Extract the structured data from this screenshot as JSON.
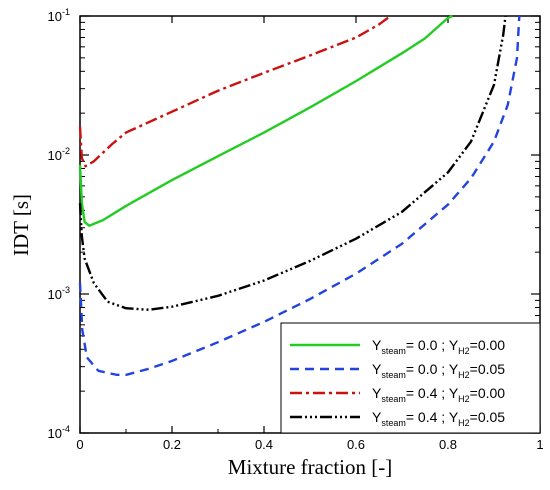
{
  "chart_data": {
    "type": "line",
    "xlabel": "Mixture fraction [-]",
    "ylabel": "IDT [s]",
    "xlim": [
      0,
      1
    ],
    "ylim": [
      0.0001,
      0.1
    ],
    "yscale": "log",
    "x_ticks": [
      "0",
      "0.2",
      "0.4",
      "0.6",
      "0.8",
      "1"
    ],
    "x_tick_values": [
      0,
      0.2,
      0.4,
      0.6,
      0.8,
      1
    ],
    "y_ticks": [
      {
        "value": 0.1,
        "base": "10",
        "exp": "-1"
      },
      {
        "value": 0.01,
        "base": "10",
        "exp": "-2"
      },
      {
        "value": 0.001,
        "base": "10",
        "exp": "-3"
      },
      {
        "value": 0.0001,
        "base": "10",
        "exp": "-4"
      }
    ],
    "grid": false,
    "legend_position": "bottom-right",
    "series": [
      {
        "legend": {
          "y_main": "Y",
          "y_sub": "steam",
          "val1": "=  0.0 ; ",
          "h_main": "Y",
          "h_sub": "H2",
          "val2": "=0.00"
        },
        "color": "#22cc22",
        "dash": "solid",
        "points": [
          [
            0.0,
            0.0085
          ],
          [
            0.004,
            0.0045
          ],
          [
            0.01,
            0.0033
          ],
          [
            0.02,
            0.0031
          ],
          [
            0.05,
            0.0034
          ],
          [
            0.1,
            0.0043
          ],
          [
            0.2,
            0.0066
          ],
          [
            0.3,
            0.0098
          ],
          [
            0.4,
            0.0145
          ],
          [
            0.5,
            0.022
          ],
          [
            0.6,
            0.034
          ],
          [
            0.7,
            0.054
          ],
          [
            0.75,
            0.069
          ],
          [
            0.8,
            0.097
          ],
          [
            0.81,
            0.1
          ]
        ]
      },
      {
        "legend": {
          "y_main": "Y",
          "y_sub": "steam",
          "val1": "=  0.0 ; ",
          "h_main": "Y",
          "h_sub": "H2",
          "val2": "=0.05"
        },
        "color": "#2244dd",
        "dash": "9,6",
        "points": [
          [
            0.0,
            0.0012
          ],
          [
            0.005,
            0.00055
          ],
          [
            0.015,
            0.00035
          ],
          [
            0.04,
            0.00028
          ],
          [
            0.08,
            0.000262
          ],
          [
            0.1,
            0.000262
          ],
          [
            0.15,
            0.00029
          ],
          [
            0.2,
            0.00033
          ],
          [
            0.3,
            0.00045
          ],
          [
            0.4,
            0.00063
          ],
          [
            0.5,
            0.00092
          ],
          [
            0.6,
            0.0014
          ],
          [
            0.7,
            0.0023
          ],
          [
            0.8,
            0.0044
          ],
          [
            0.85,
            0.0068
          ],
          [
            0.9,
            0.0125
          ],
          [
            0.93,
            0.023
          ],
          [
            0.95,
            0.05
          ],
          [
            0.955,
            0.1
          ]
        ]
      },
      {
        "legend": {
          "y_main": "Y",
          "y_sub": "steam",
          "val1": "=  0.4 ; ",
          "h_main": "Y",
          "h_sub": "H2",
          "val2": "=0.00"
        },
        "color": "#cc1111",
        "dash": "12,4,3,4",
        "points": [
          [
            0.0,
            0.016
          ],
          [
            0.004,
            0.0095
          ],
          [
            0.012,
            0.0083
          ],
          [
            0.03,
            0.009
          ],
          [
            0.07,
            0.012
          ],
          [
            0.1,
            0.0145
          ],
          [
            0.2,
            0.0205
          ],
          [
            0.3,
            0.029
          ],
          [
            0.4,
            0.039
          ],
          [
            0.5,
            0.052
          ],
          [
            0.6,
            0.07
          ],
          [
            0.65,
            0.087
          ],
          [
            0.675,
            0.1
          ]
        ]
      },
      {
        "legend": {
          "y_main": "Y",
          "y_sub": "steam",
          "val1": "=  0.4 ; ",
          "h_main": "Y",
          "h_sub": "H2",
          "val2": "=0.05"
        },
        "color": "#000000",
        "dash": "12,3,2,3,2,3,2,3",
        "points": [
          [
            0.0,
            0.0045
          ],
          [
            0.004,
            0.0026
          ],
          [
            0.01,
            0.0018
          ],
          [
            0.03,
            0.0012
          ],
          [
            0.06,
            0.00088
          ],
          [
            0.1,
            0.00079
          ],
          [
            0.15,
            0.00077
          ],
          [
            0.2,
            0.00081
          ],
          [
            0.3,
            0.00097
          ],
          [
            0.4,
            0.00125
          ],
          [
            0.5,
            0.00173
          ],
          [
            0.6,
            0.0025
          ],
          [
            0.7,
            0.0039
          ],
          [
            0.8,
            0.0075
          ],
          [
            0.85,
            0.0125
          ],
          [
            0.9,
            0.032
          ],
          [
            0.92,
            0.073
          ],
          [
            0.925,
            0.1
          ]
        ]
      }
    ]
  }
}
